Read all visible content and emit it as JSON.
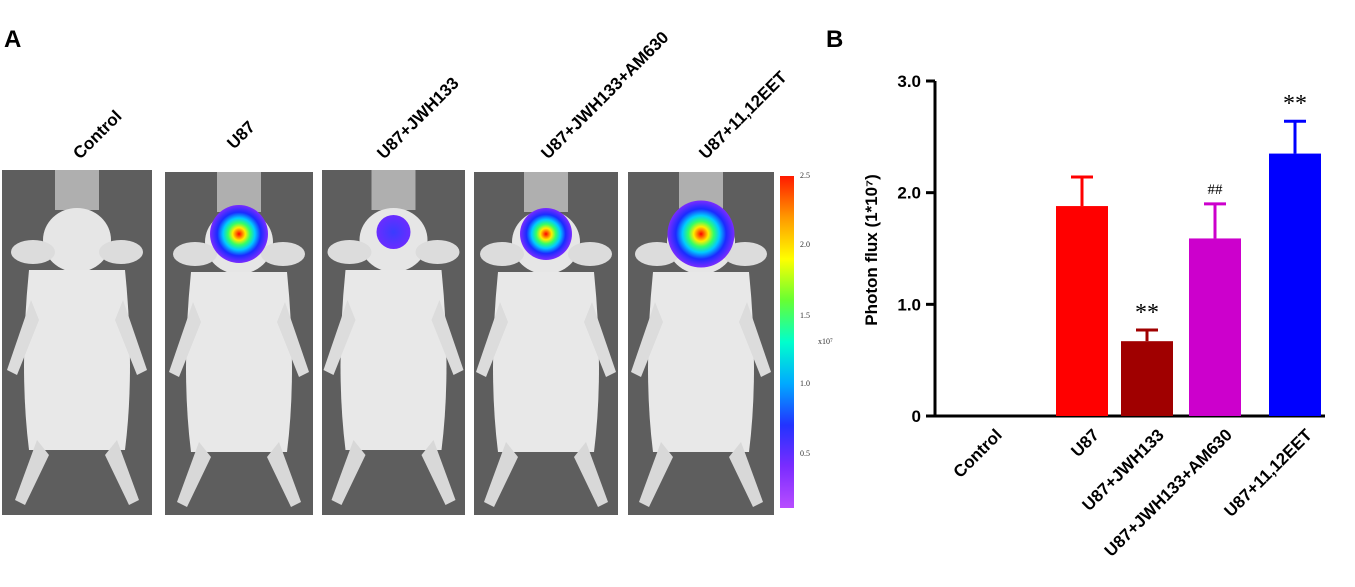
{
  "panels": {
    "a_label": "A",
    "b_label": "B"
  },
  "imaging": {
    "groups": [
      "Control",
      "U87",
      "U87+JWH133",
      "U87+JWH133+AM630",
      "U87+11,12EET"
    ],
    "signal_level": [
      0,
      1.9,
      0.7,
      1.6,
      2.35
    ],
    "colorbar": {
      "ticks": [
        "2.5",
        "2.0",
        "1.5",
        "1.0",
        "0.5"
      ],
      "unit": "x10⁷",
      "colors": [
        "#ff1a00",
        "#ff9900",
        "#ffff00",
        "#66ff33",
        "#00ffcc",
        "#00aaff",
        "#2233ff",
        "#7a2cff",
        "#b84dff"
      ]
    }
  },
  "chart_data": {
    "type": "bar",
    "categories": [
      "Control",
      "U87",
      "U87+JWH133",
      "U87+JWH133+AM630",
      "U87+11,12EET"
    ],
    "values": [
      0,
      1.88,
      0.67,
      1.59,
      2.35
    ],
    "errors": [
      0,
      0.26,
      0.1,
      0.31,
      0.29
    ],
    "colors": [
      "#ffffff",
      "#ff0000",
      "#a00000",
      "#cc00cc",
      "#0000ff"
    ],
    "annotations": [
      "",
      "",
      "**",
      "##",
      "**"
    ],
    "ylabel": "Photon flux (1*10⁷)",
    "yticks": [
      "0",
      "1.0",
      "2.0",
      "3.0"
    ],
    "ylim": [
      0,
      3.0
    ]
  }
}
